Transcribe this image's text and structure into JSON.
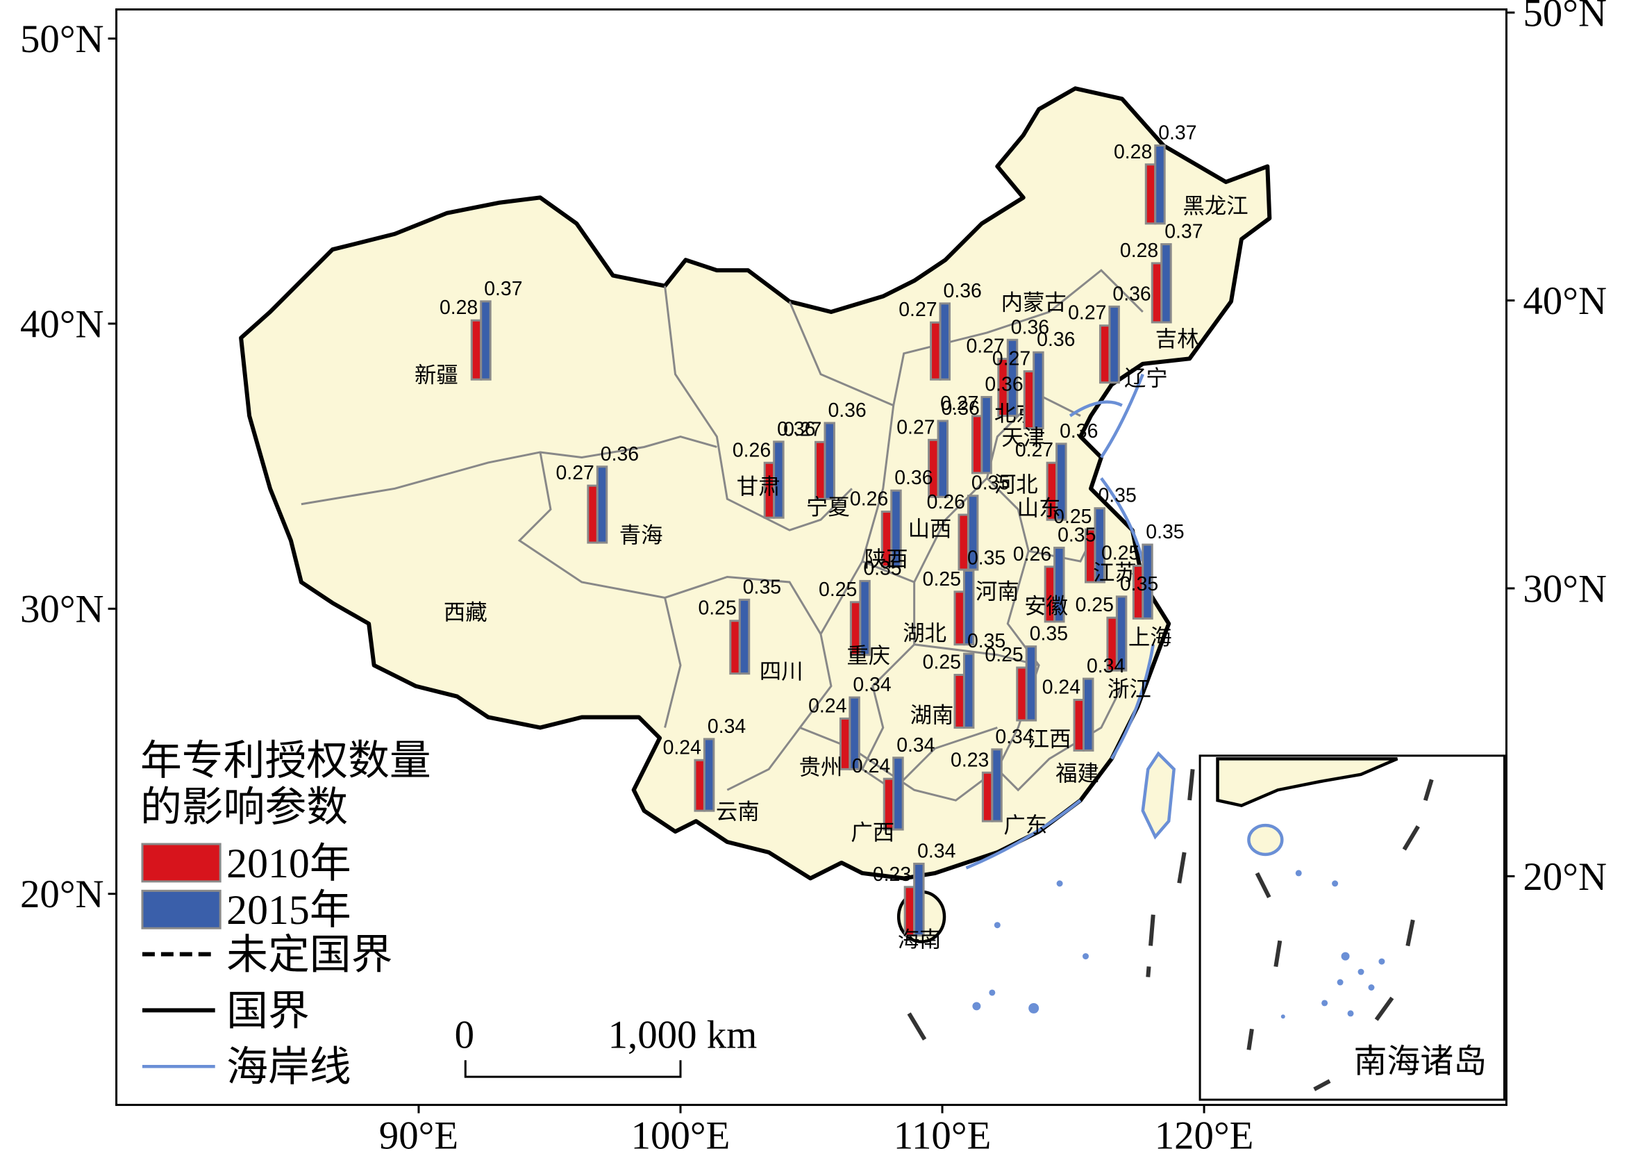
{
  "axes": {
    "left_ticks": [
      {
        "value": 50,
        "label": "50°N"
      },
      {
        "value": 40,
        "label": "40°N"
      },
      {
        "value": 30,
        "label": "30°N"
      },
      {
        "value": 20,
        "label": "20°N"
      }
    ],
    "right_ticks": [
      {
        "value": 50,
        "label": "50°N"
      },
      {
        "value": 40,
        "label": "40°N"
      },
      {
        "value": 30,
        "label": "30°N"
      },
      {
        "value": 20,
        "label": "20°N"
      }
    ],
    "bottom_ticks": [
      {
        "value": 90,
        "label": "90°E"
      },
      {
        "value": 100,
        "label": "100°E"
      },
      {
        "value": 110,
        "label": "110°E"
      },
      {
        "value": 120,
        "label": "120°E"
      }
    ]
  },
  "provinces": [
    {
      "name": "新疆",
      "values": [
        0.28,
        0.37
      ]
    },
    {
      "name": "青海",
      "values": [
        0.27,
        0.36
      ]
    },
    {
      "name": "甘肃",
      "values": [
        0.26,
        0.36
      ]
    },
    {
      "name": "宁夏",
      "values": [
        0.27,
        0.36
      ]
    },
    {
      "name": "内蒙古",
      "values": [
        0.27,
        0.36
      ]
    },
    {
      "name": "黑龙江",
      "values": [
        0.28,
        0.37
      ]
    },
    {
      "name": "吉林",
      "values": [
        0.28,
        0.37
      ]
    },
    {
      "name": "辽宁",
      "values": [
        0.27,
        0.36
      ]
    },
    {
      "name": "北京",
      "values": [
        0.27,
        0.36
      ]
    },
    {
      "name": "天津",
      "values": [
        0.27,
        0.36
      ]
    },
    {
      "name": "河北",
      "values": [
        0.27,
        0.36
      ]
    },
    {
      "name": "山西",
      "values": [
        0.27,
        0.36
      ]
    },
    {
      "name": "山东",
      "values": [
        0.27,
        0.36
      ]
    },
    {
      "name": "陕西",
      "values": [
        0.26,
        0.36
      ]
    },
    {
      "name": "河南",
      "values": [
        0.26,
        0.35
      ]
    },
    {
      "name": "江苏",
      "values": [
        0.25,
        0.35
      ]
    },
    {
      "name": "安徽",
      "values": [
        0.26,
        0.35
      ]
    },
    {
      "name": "上海",
      "values": [
        0.25,
        0.35
      ]
    },
    {
      "name": "湖北",
      "values": [
        0.25,
        0.35
      ]
    },
    {
      "name": "四川",
      "values": [
        0.25,
        0.35
      ]
    },
    {
      "name": "重庆",
      "values": [
        0.25,
        0.35
      ]
    },
    {
      "name": "浙江",
      "values": [
        0.25,
        0.35
      ]
    },
    {
      "name": "江西",
      "values": [
        0.25,
        0.35
      ]
    },
    {
      "name": "湖南",
      "values": [
        0.25,
        0.35
      ]
    },
    {
      "name": "福建",
      "values": [
        0.24,
        0.34
      ]
    },
    {
      "name": "贵州",
      "values": [
        0.24,
        0.34
      ]
    },
    {
      "name": "云南",
      "values": [
        0.24,
        0.34
      ]
    },
    {
      "name": "广西",
      "values": [
        0.24,
        0.34
      ]
    },
    {
      "name": "广东",
      "values": [
        0.23,
        0.34
      ]
    },
    {
      "name": "海南",
      "values": [
        0.23,
        0.34
      ]
    }
  ],
  "other_regions": [
    "西藏"
  ],
  "legend": {
    "title": [
      "年专利授权数量",
      "的影响参数"
    ],
    "series": [
      {
        "name": "2010年",
        "color": "#d7141c"
      },
      {
        "name": "2015年",
        "color": "#3a5faa"
      }
    ],
    "lines": [
      "未定国界",
      "国界",
      "海岸线"
    ]
  },
  "scale_bar": {
    "labels": [
      "0",
      "1,000 km"
    ]
  },
  "inset_title": "南海诸岛"
}
